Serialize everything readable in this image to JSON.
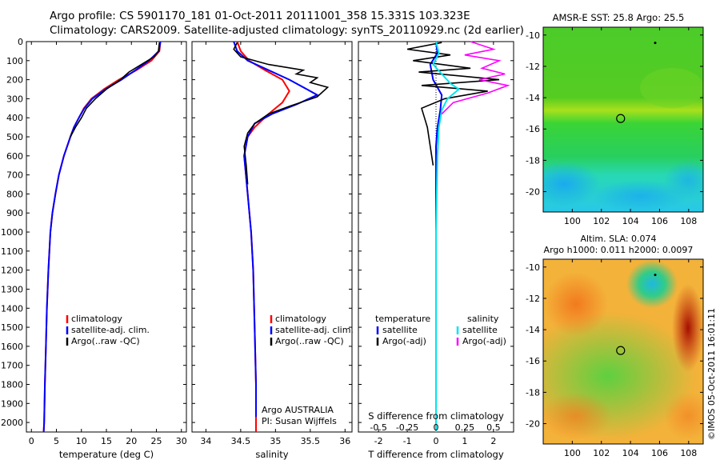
{
  "header": {
    "line1": "Argo profile: CS 5901170_181 01-Oct-2011 20111001_358 15.331S 103.323E",
    "line2": "Climatology: CARS2009. Satellite-adjusted climatology: synTS_20110929.nc (2d earlier)"
  },
  "colors": {
    "climatology": "#ff0000",
    "satellite": "#0000ff",
    "argo": "#000000",
    "salinity_satellite": "#00e5ee",
    "salinity_argo": "#ff00ff"
  },
  "credit": "©IMOS 05-Oct-2011 16:01:11",
  "chart_data": [
    {
      "type": "line",
      "id": "temperature",
      "xlabel": "temperature (deg C)",
      "ylabel": "",
      "xlim": [
        -1,
        31
      ],
      "ylim": [
        2050,
        0
      ],
      "xticks": [
        0,
        5,
        10,
        15,
        20,
        25,
        30
      ],
      "yticks": [
        0,
        100,
        200,
        300,
        400,
        500,
        600,
        700,
        800,
        900,
        1000,
        1100,
        1200,
        1300,
        1400,
        1500,
        1600,
        1700,
        1800,
        1900,
        2000
      ],
      "legend": [
        "climatology",
        "satellite-adj. clim.",
        "Argo(..raw -QC)"
      ],
      "legend_position": "lower-center",
      "series": [
        {
          "name": "climatology",
          "color": "#ff0000",
          "x": [
            25.8,
            25.6,
            24.0,
            21.0,
            17.5,
            14.5,
            12.0,
            10.5,
            9.5,
            8.5,
            7.8,
            6.5,
            5.5,
            4.8,
            4.2,
            3.8,
            3.4,
            3.1,
            2.9,
            2.7,
            2.55,
            2.45
          ],
          "y": [
            0,
            50,
            100,
            150,
            200,
            250,
            300,
            350,
            400,
            450,
            500,
            600,
            700,
            800,
            900,
            1000,
            1200,
            1400,
            1600,
            1800,
            2000,
            2050
          ]
        },
        {
          "name": "satellite-adj. clim.",
          "color": "#0000ff",
          "x": [
            25.8,
            25.5,
            23.5,
            20.8,
            18.0,
            14.8,
            12.2,
            10.6,
            9.5,
            8.5,
            7.8,
            6.5,
            5.5,
            4.8,
            4.2,
            3.8,
            3.4,
            3.1,
            2.9,
            2.7,
            2.55,
            2.45
          ],
          "y": [
            0,
            50,
            100,
            150,
            200,
            250,
            300,
            350,
            400,
            450,
            500,
            600,
            700,
            800,
            900,
            1000,
            1200,
            1400,
            1600,
            1800,
            2000,
            2050
          ]
        },
        {
          "name": "Argo(..raw -QC)",
          "color": "#000000",
          "x": [
            25.6,
            25.4,
            24.5,
            22.0,
            19.5,
            17.8,
            15.0,
            12.8,
            11.0,
            10.0,
            8.8,
            7.8
          ],
          "y": [
            5,
            50,
            80,
            120,
            160,
            200,
            250,
            300,
            350,
            400,
            450,
            500
          ]
        }
      ]
    },
    {
      "type": "line",
      "id": "salinity",
      "xlabel": "salinity",
      "ylabel": "",
      "xlim": [
        33.8,
        36.1
      ],
      "ylim": [
        2050,
        0
      ],
      "xticks": [
        34,
        34.5,
        35,
        35.5,
        36
      ],
      "legend": [
        "climatology",
        "satellite-adj. clim.",
        "Argo(..raw -QC)"
      ],
      "legend_position": "lower-center",
      "annotation": [
        "Argo AUSTRALIA",
        "PI: Susan Wijffels"
      ],
      "series": [
        {
          "name": "climatology",
          "color": "#ff0000",
          "x": [
            34.45,
            34.5,
            34.62,
            34.85,
            35.1,
            35.2,
            35.1,
            34.9,
            34.7,
            34.6,
            34.55,
            34.6,
            34.65,
            34.68,
            34.7,
            34.72,
            34.72
          ],
          "y": [
            0,
            50,
            100,
            150,
            200,
            260,
            320,
            380,
            450,
            500,
            600,
            800,
            1000,
            1200,
            1500,
            1800,
            2050
          ]
        },
        {
          "name": "satellite-adj. clim.",
          "color": "#0000ff",
          "x": [
            34.4,
            34.45,
            34.6,
            34.9,
            35.2,
            35.45,
            35.6,
            35.3,
            34.95,
            34.7,
            34.6,
            34.55,
            34.6,
            34.65,
            34.68,
            34.7,
            34.72,
            34.72
          ],
          "y": [
            0,
            50,
            100,
            150,
            200,
            250,
            280,
            330,
            380,
            430,
            500,
            600,
            800,
            1000,
            1200,
            1500,
            1800,
            1970
          ]
        },
        {
          "name": "Argo(..raw -QC)",
          "color": "#000000",
          "x": [
            34.45,
            34.4,
            34.5,
            34.9,
            35.4,
            35.3,
            35.6,
            35.5,
            35.75,
            35.6,
            35.2,
            34.9,
            34.7,
            34.6,
            34.55,
            34.58,
            34.6
          ],
          "y": [
            5,
            40,
            80,
            120,
            150,
            170,
            190,
            215,
            240,
            290,
            340,
            380,
            430,
            480,
            550,
            650,
            750
          ]
        }
      ]
    },
    {
      "type": "line",
      "id": "difference",
      "xlabel": "T difference from climatology",
      "x2label": "S difference from climatology",
      "xlim": [
        -2.7,
        2.7
      ],
      "ylim": [
        2050,
        0
      ],
      "xticks": [
        -2,
        -1,
        0,
        1,
        2
      ],
      "x2ticks_labels": [
        "-0.5",
        "-0.25",
        "0",
        "0.25",
        "0.5"
      ],
      "legend": [
        "temperature",
        "satellite",
        "Argo(-adj)",
        "salinity",
        "satellite",
        "Argo(-adj)"
      ],
      "series": [
        {
          "name": "temperature satellite",
          "color": "#0000ff",
          "x": [
            0,
            0.05,
            -0.2,
            -0.1,
            0.2,
            0.15,
            0.05,
            0.0,
            0.0,
            0.0,
            0.0,
            0.0
          ],
          "y": [
            0,
            60,
            120,
            200,
            280,
            360,
            450,
            550,
            700,
            1000,
            1500,
            2050
          ]
        },
        {
          "name": "temperature Argo(-adj)",
          "color": "#000000",
          "x": [
            0.2,
            -1.0,
            0.5,
            -0.8,
            1.2,
            -0.6,
            2.2,
            -0.5,
            1.8,
            0.3,
            -0.5,
            -0.4,
            -0.3,
            -0.2,
            -0.1
          ],
          "y": [
            5,
            40,
            70,
            100,
            140,
            160,
            200,
            230,
            260,
            300,
            350,
            400,
            450,
            550,
            650
          ]
        },
        {
          "name": "salinity satellite",
          "color": "#00e5ee",
          "x": [
            0,
            0.1,
            -0.1,
            0.2,
            0.5,
            0.8,
            0.4,
            0.2,
            0.1,
            0.05,
            0.0,
            0.0
          ],
          "y": [
            0,
            60,
            120,
            170,
            220,
            250,
            300,
            360,
            450,
            600,
            1000,
            2050
          ]
        },
        {
          "name": "salinity Argo(-adj)",
          "color": "#ff00ff",
          "x": [
            1.2,
            2.0,
            1.0,
            2.2,
            1.6,
            2.4,
            1.5,
            2.5,
            1.8,
            0.6,
            0.2
          ],
          "y": [
            0,
            40,
            70,
            100,
            140,
            170,
            200,
            230,
            270,
            320,
            380
          ]
        }
      ]
    },
    {
      "type": "heatmap",
      "id": "sst_map",
      "title": "AMSR-E SST: 25.8 Argo: 25.5",
      "xlim": [
        98,
        109
      ],
      "ylim": [
        -21.3,
        -9.5
      ],
      "xticks": [
        100,
        102,
        104,
        106,
        108
      ],
      "yticks": [
        -10,
        -12,
        -14,
        -16,
        -18,
        -20
      ],
      "marker": {
        "lon": 103.323,
        "lat": -15.331
      }
    },
    {
      "type": "heatmap",
      "id": "sla_map",
      "title": "Altim. SLA: 0.074",
      "subtitle": "Argo h1000: 0.011 h2000: 0.0097",
      "xlim": [
        98,
        109
      ],
      "ylim": [
        -21.3,
        -9.5
      ],
      "xticks": [
        100,
        102,
        104,
        106,
        108
      ],
      "yticks": [
        -10,
        -12,
        -14,
        -16,
        -18,
        -20
      ],
      "marker": {
        "lon": 103.323,
        "lat": -15.331
      }
    }
  ]
}
